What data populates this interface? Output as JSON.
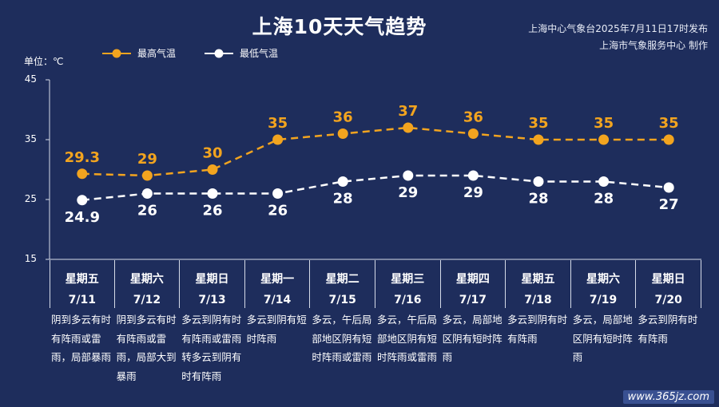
{
  "header": {
    "title": "上海10天天气趋势",
    "issuer_line1": "上海中心气象台2025年7月11日17时发布",
    "issuer_line2": "上海市气象服务中心 制作"
  },
  "unit_label": "单位：℃",
  "legend": {
    "high": "最高气温",
    "low": "最低气温"
  },
  "colors": {
    "background": "#1e2d5c",
    "high": "#f2a41f",
    "low": "#ffffff"
  },
  "chart_data": {
    "type": "line",
    "categories": [
      "7/11",
      "7/12",
      "7/13",
      "7/14",
      "7/15",
      "7/16",
      "7/17",
      "7/18",
      "7/19",
      "7/20"
    ],
    "series": [
      {
        "name": "最高气温",
        "values": [
          29.3,
          29,
          30,
          35,
          36,
          37,
          36,
          35,
          35,
          35
        ],
        "labels": [
          "29.3",
          "29",
          "30",
          "35",
          "36",
          "37",
          "36",
          "35",
          "35",
          "35"
        ]
      },
      {
        "name": "最低气温",
        "values": [
          24.9,
          26,
          26,
          26,
          28,
          29,
          29,
          28,
          28,
          27
        ],
        "labels": [
          "24.9",
          "26",
          "26",
          "26",
          "28",
          "29",
          "29",
          "28",
          "28",
          "27"
        ]
      }
    ],
    "ylabel": "单位：℃",
    "ylim": [
      15,
      45
    ],
    "yticks": [
      "15",
      "25",
      "35",
      "45"
    ],
    "grid": false,
    "legend": "top-left"
  },
  "days": [
    {
      "weekday": "星期五",
      "date": "7/11",
      "desc": "阴到多云有时有阵雨或雷雨，局部暴雨"
    },
    {
      "weekday": "星期六",
      "date": "7/12",
      "desc": "阴到多云有时有阵雨或雷雨，局部大到暴雨"
    },
    {
      "weekday": "星期日",
      "date": "7/13",
      "desc": "多云到阴有时有阵雨或雷雨转多云到阴有时有阵雨"
    },
    {
      "weekday": "星期一",
      "date": "7/14",
      "desc": "多云到阴有短时阵雨"
    },
    {
      "weekday": "星期二",
      "date": "7/15",
      "desc": "多云，午后局部地区阴有短时阵雨或雷雨"
    },
    {
      "weekday": "星期三",
      "date": "7/16",
      "desc": "多云，午后局部地区阴有短时阵雨或雷雨"
    },
    {
      "weekday": "星期四",
      "date": "7/17",
      "desc": "多云，局部地区阴有短时阵雨"
    },
    {
      "weekday": "星期五",
      "date": "7/18",
      "desc": "多云到阴有时有阵雨"
    },
    {
      "weekday": "星期六",
      "date": "7/19",
      "desc": "多云，局部地区阴有短时阵雨"
    },
    {
      "weekday": "星期日",
      "date": "7/20",
      "desc": "多云到阴有时有阵雨"
    }
  ],
  "watermark": "www.365jz.com"
}
